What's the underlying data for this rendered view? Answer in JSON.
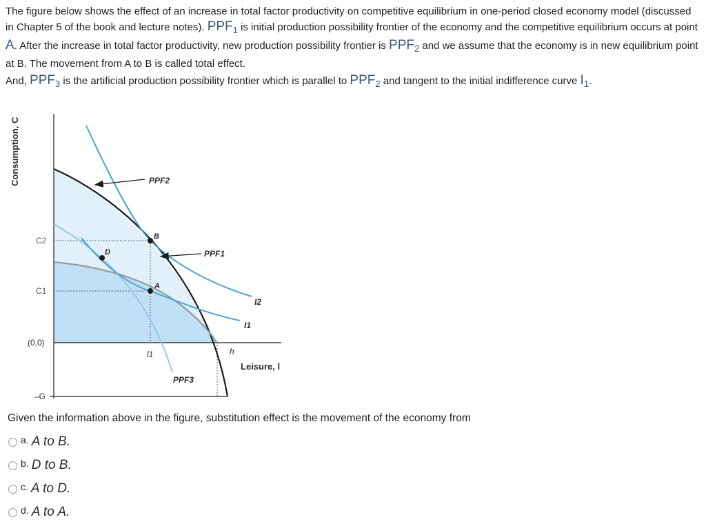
{
  "intro": {
    "p1_a": "The figure below shows the effect of an increase in total factor productivity on competitive equilibrium in one-period closed economy model (discussed in Chapter 5 of the book and lecture notes).",
    "ppf1_sym": "PPF",
    "ppf1_sub": "1",
    "p1_b": "is initial production possibility frontier of the economy and the competitive equilibrium occurs at point",
    "pointA_sym": "A",
    "p1_c": ". After the increase in total factor productivity, new production possibility frontier is",
    "ppf2_sym": "PPF",
    "ppf2_sub": "2",
    "p1_d": "and we assume that the economy is in new equilibrium point at B. The movement from A to B is called total effect.",
    "p2_a": "And,",
    "ppf3_sym": "PPF",
    "ppf3_sub": "3",
    "p2_b": "is the artificial production possibility frontier which is parallel to",
    "ppf2b_sym": "PPF",
    "ppf2b_sub": "2",
    "p2_c": "and tangent to the initial indifference curve",
    "i1_sym": "I",
    "i1_sub": "1",
    "p2_d": "."
  },
  "figure": {
    "y_axis_label": "Consumption, C",
    "x_axis_label": "Leisure, l",
    "tick_c2": "C2",
    "tick_c1": "C1",
    "tick_origin": "(0,0)",
    "tick_minus_g": "–G",
    "tick_l1": "l1",
    "tick_h": "h",
    "label_ppf2": "PPF2",
    "label_ppf1": "PPF1",
    "label_ppf3": "PPF3",
    "label_i2": "I2",
    "label_i1": "I1",
    "point_b": "B",
    "point_d": "D",
    "point_a": "A",
    "colors": {
      "ppf_curve": "#1a1a1a",
      "indifference": "#4aa3d6",
      "ppf3": "#8fcbe8",
      "shade_dark": "#bfe0f6",
      "shade_light": "#e1f0fb",
      "ppf1_gray": "#999999"
    }
  },
  "question": {
    "text": "Given the information above in the figure, substitution effect is the movement of the economy from",
    "options": [
      {
        "letter": "a.",
        "text": "A to B."
      },
      {
        "letter": "b.",
        "text": "D to B."
      },
      {
        "letter": "c.",
        "text": "A to D."
      },
      {
        "letter": "d.",
        "text": "A to A."
      }
    ]
  }
}
